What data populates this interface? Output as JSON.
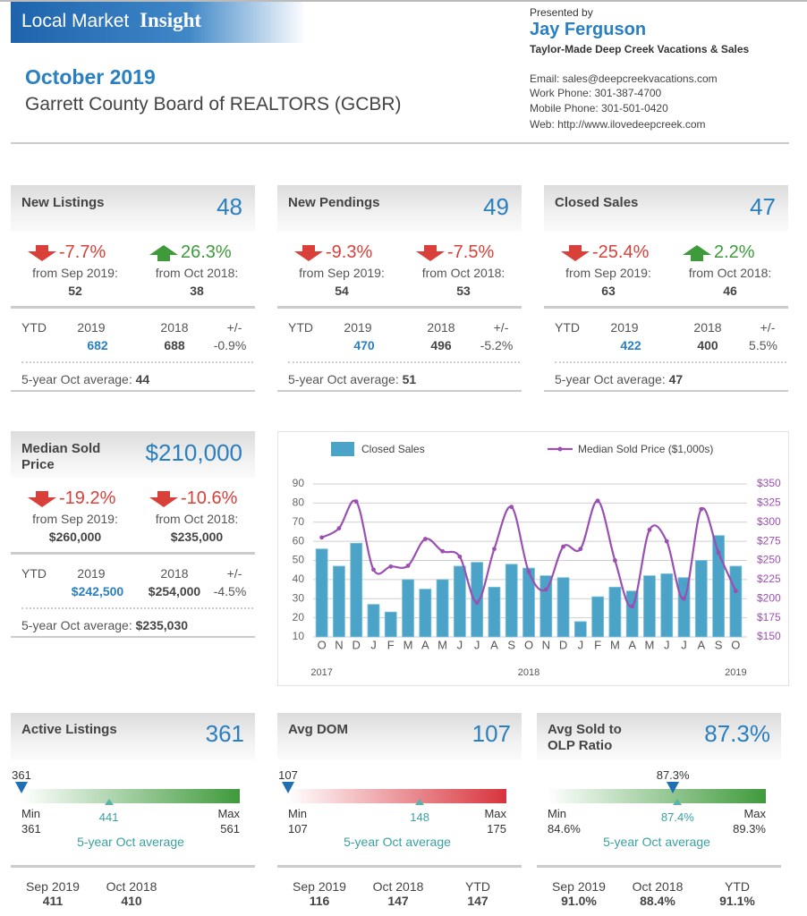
{
  "header": {
    "brand_plain": "Local Market",
    "brand_bold": "Insight",
    "month": "October 2019",
    "board": "Garrett County Board of REALTORS (GCBR)",
    "presented_by": "Presented by",
    "agent": "Jay Ferguson",
    "company": "Taylor-Made Deep Creek Vacations & Sales",
    "email": "Email: sales@deepcreekvacations.com",
    "work_phone": "Work Phone: 301-387-4700",
    "mobile_phone": "Mobile Phone: 301-501-0420",
    "web": "Web: http://www.ilovedeepcreek.com"
  },
  "cards": [
    {
      "title": "New Listings",
      "value": "48",
      "changes": [
        {
          "direction": "down",
          "percent": "-7.7%",
          "from": "from Sep 2019:",
          "previous": "52"
        },
        {
          "direction": "up",
          "percent": "26.3%",
          "from": "from Oct 2018:",
          "previous": "38"
        }
      ],
      "ytd": {
        "label": "YTD",
        "columns": [
          "2019",
          "2018",
          "+/-"
        ],
        "values": [
          "682",
          "688",
          "-0.9%"
        ]
      },
      "average_label": "5-year Oct average:",
      "average": "44"
    },
    {
      "title": "New Pendings",
      "value": "49",
      "changes": [
        {
          "direction": "down",
          "percent": "-9.3%",
          "from": "from Sep 2019:",
          "previous": "54"
        },
        {
          "direction": "down",
          "percent": "-7.5%",
          "from": "from Oct 2018:",
          "previous": "53"
        }
      ],
      "ytd": {
        "label": "YTD",
        "columns": [
          "2019",
          "2018",
          "+/-"
        ],
        "values": [
          "470",
          "496",
          "-5.2%"
        ]
      },
      "average_label": "5-year Oct average:",
      "average": "51"
    },
    {
      "title": "Closed Sales",
      "value": "47",
      "changes": [
        {
          "direction": "down",
          "percent": "-25.4%",
          "from": "from Sep 2019:",
          "previous": "63"
        },
        {
          "direction": "up",
          "percent": "2.2%",
          "from": "from Oct 2018:",
          "previous": "46"
        }
      ],
      "ytd": {
        "label": "YTD",
        "columns": [
          "2019",
          "2018",
          "+/-"
        ],
        "values": [
          "422",
          "400",
          "5.5%"
        ]
      },
      "average_label": "5-year Oct average:",
      "average": "47"
    },
    {
      "title": "Median Sold Price",
      "value": "$210,000",
      "changes": [
        {
          "direction": "down",
          "percent": "-19.2%",
          "from": "from Sep 2019:",
          "previous": "$260,000"
        },
        {
          "direction": "down",
          "percent": "-10.6%",
          "from": "from Oct 2018:",
          "previous": "$235,000"
        }
      ],
      "ytd": {
        "label": "YTD",
        "columns": [
          "2019",
          "2018",
          "+/-"
        ],
        "values": [
          "$242,500",
          "$254,000",
          "-4.5%"
        ]
      },
      "average_label": "5-year Oct average:",
      "average": "$235,030"
    }
  ],
  "chart_data": {
    "type": "combo",
    "categories": [
      "O",
      "N",
      "D",
      "J",
      "F",
      "M",
      "A",
      "M",
      "J",
      "J",
      "A",
      "S",
      "O",
      "N",
      "D",
      "J",
      "F",
      "M",
      "A",
      "M",
      "J",
      "J",
      "A",
      "S",
      "O"
    ],
    "category_years": [
      "2017",
      null,
      null,
      null,
      null,
      null,
      null,
      null,
      null,
      null,
      null,
      null,
      "2018",
      null,
      null,
      null,
      null,
      null,
      null,
      null,
      null,
      null,
      null,
      null,
      "2019"
    ],
    "series": [
      {
        "name": "Closed Sales",
        "type": "bar",
        "color": "#4ba3c7",
        "values": [
          56,
          47,
          59,
          27,
          23,
          40,
          35,
          40,
          47,
          49,
          36,
          48,
          46,
          42,
          41,
          18,
          31,
          36,
          34,
          42,
          43,
          41,
          50,
          63,
          47
        ]
      },
      {
        "name": "Median Sold Price ($1,000s)",
        "type": "line",
        "color": "#9b4fb3",
        "axis": "y2",
        "values": [
          280,
          292,
          327,
          238,
          242,
          243,
          278,
          262,
          255,
          195,
          265,
          320,
          235,
          212,
          268,
          265,
          328,
          250,
          190,
          290,
          275,
          200,
          317,
          260,
          210
        ]
      }
    ],
    "ylim": [
      10,
      90
    ],
    "yticks": [
      10,
      20,
      30,
      40,
      50,
      60,
      70,
      80,
      90
    ],
    "y2lim": [
      150,
      350
    ],
    "y2ticks": [
      {
        "value": 150,
        "label": "$150"
      },
      {
        "value": 175,
        "label": "$175"
      },
      {
        "value": 200,
        "label": "$200"
      },
      {
        "value": 225,
        "label": "$225"
      },
      {
        "value": 250,
        "label": "$250"
      },
      {
        "value": 275,
        "label": "$275"
      },
      {
        "value": 300,
        "label": "$300"
      },
      {
        "value": 325,
        "label": "$325"
      },
      {
        "value": 350,
        "label": "$350"
      }
    ],
    "grid": true
  },
  "gauges": [
    {
      "title": "Active Listings",
      "value": "361",
      "color": "#3f9a3c",
      "current": 361,
      "min_label": "Min",
      "min": 361,
      "max_label": "Max",
      "max": 561,
      "average": 441,
      "average_caption": "5-year Oct average",
      "footer": [
        {
          "label": "Sep 2019",
          "value": "411"
        },
        {
          "label": "Oct 2018",
          "value": "410"
        }
      ]
    },
    {
      "title": "Avg DOM",
      "value": "107",
      "color": "#d8343c",
      "current": 107,
      "min_label": "Min",
      "min": 107,
      "max_label": "Max",
      "max": 175,
      "average": 148,
      "average_caption": "5-year Oct average",
      "footer": [
        {
          "label": "Sep 2019",
          "value": "116"
        },
        {
          "label": "Oct 2018",
          "value": "147"
        },
        {
          "label": "YTD",
          "value": "147"
        }
      ]
    },
    {
      "title": "Avg Sold to OLP Ratio",
      "value": "87.3%",
      "color": "#3f9a3c",
      "current": {
        "value": 87.3,
        "label": "87.3%"
      },
      "min_label": "Min",
      "min": {
        "value": 84.6,
        "label": "84.6%"
      },
      "max_label": "Max",
      "max": {
        "value": 89.3,
        "label": "89.3%"
      },
      "average": {
        "value": 87.4,
        "label": "87.4%"
      },
      "average_caption": "5-year Oct average",
      "footer": [
        {
          "label": "Sep 2019",
          "value": "91.0%"
        },
        {
          "label": "Oct 2018",
          "value": "88.4%"
        },
        {
          "label": "YTD",
          "value": "91.1%"
        }
      ]
    }
  ]
}
